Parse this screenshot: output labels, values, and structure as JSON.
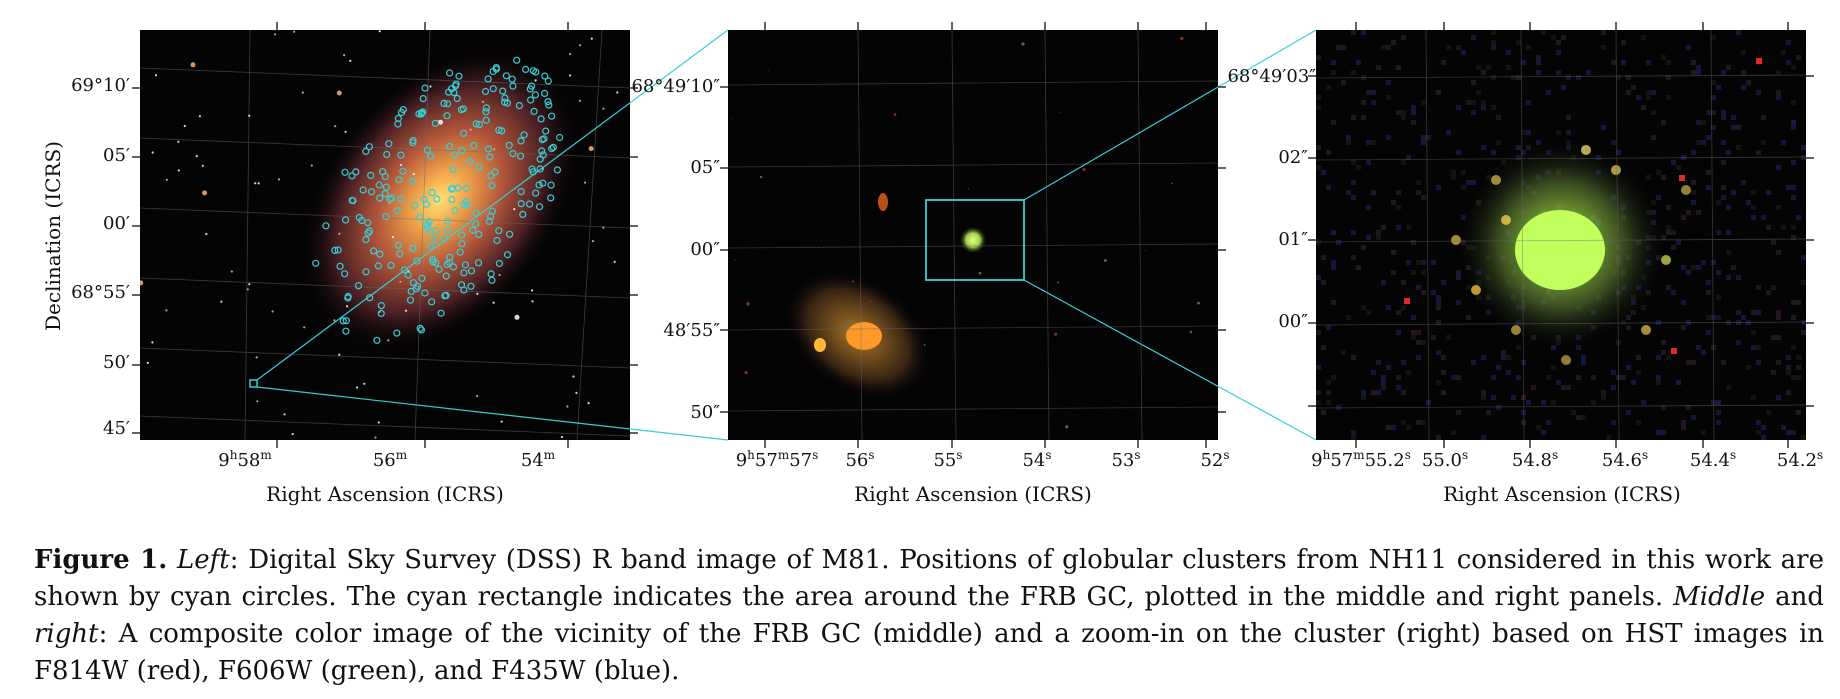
{
  "panels": {
    "left": {
      "ylabel": "Declination (ICRS)",
      "xlabel": "Right Ascension (ICRS)",
      "yticks": [
        "69°10′",
        "05′",
        "00′",
        "68°55′",
        "50′",
        "45′"
      ],
      "xticks": [
        "9h58m",
        "56m",
        "54m"
      ]
    },
    "middle": {
      "xlabel": "Right Ascension (ICRS)",
      "yticks": [
        "68°49′10″",
        "05″",
        "00″",
        "48′55″",
        "50″"
      ],
      "xticks": [
        "9h57m57s",
        "56s",
        "55s",
        "54s",
        "53s",
        "52s"
      ]
    },
    "right": {
      "xlabel": "Right Ascension (ICRS)",
      "yticks": [
        "68°49′03″",
        "02″",
        "01″",
        "00″"
      ],
      "xticks": [
        "9h57m55.2s",
        "55.0s",
        "54.8s",
        "54.6s",
        "54.4s",
        "54.2s"
      ]
    }
  },
  "caption": {
    "label": "Figure 1.",
    "text_html": " <i>Left</i>: Digital Sky Survey (DSS) R band image of M81. Positions of globular clusters from NH11 considered in this work are shown by cyan circles. The cyan rectangle indicates the area around the FRB GC, plotted in the middle and right panels. <i>Middle</i> and <i>right</i>: A composite color image of the vicinity of the FRB GC (middle) and a zoom-in on the cluster (right) based on HST images in F814W (red), F606W (green), and F435W (blue)."
  },
  "colors": {
    "cyan": "#35d0d6",
    "background": "#050405",
    "grid": "#6a6a6a"
  }
}
